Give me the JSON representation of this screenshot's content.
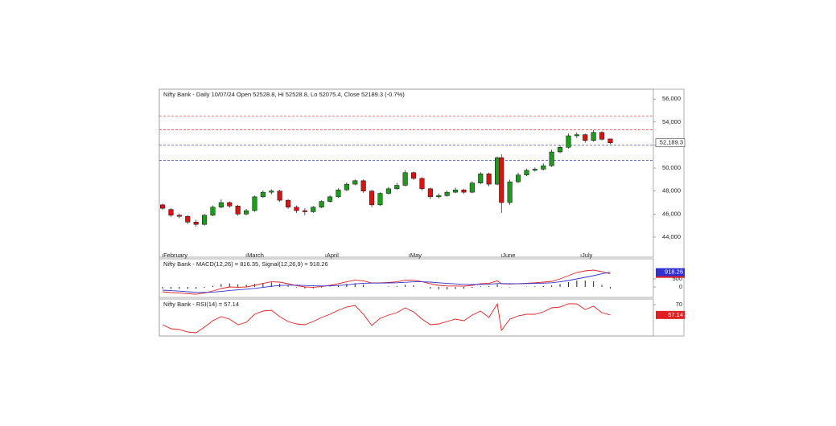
{
  "chart_data": [
    {
      "type": "candlestick",
      "title": "Nifty Bank - Daily 10/07/24 Open 52528.8, Hi 52528.8, Lo 52075.4, Close 52189.3 (-0.7%)",
      "x": [
        0,
        2,
        4,
        6,
        8,
        10,
        12,
        14,
        16,
        18,
        20,
        22,
        24,
        26,
        28,
        30,
        32,
        34,
        36,
        38,
        40,
        42,
        44,
        46,
        48,
        50,
        52,
        54,
        56,
        58,
        60,
        62,
        64,
        66,
        68,
        70,
        72,
        74,
        76,
        78,
        80,
        81,
        83,
        85,
        87,
        89,
        91,
        93,
        95,
        97,
        99,
        101,
        103,
        105,
        107
      ],
      "open": [
        46800,
        46400,
        45900,
        45800,
        45300,
        45100,
        45900,
        46600,
        47000,
        46700,
        46000,
        46300,
        47500,
        47900,
        48000,
        47200,
        46600,
        46300,
        46200,
        46600,
        47100,
        47500,
        48100,
        48600,
        48900,
        48000,
        46800,
        47800,
        48200,
        48500,
        49600,
        49100,
        48200,
        47500,
        47600,
        47900,
        48100,
        47900,
        48700,
        49500,
        48600,
        50900,
        47000,
        48800,
        49400,
        49800,
        49900,
        50200,
        51400,
        51800,
        52800,
        52900,
        52400,
        53100,
        52528.8
      ],
      "high": [
        46900,
        46500,
        46050,
        45900,
        45500,
        46000,
        46750,
        47300,
        47100,
        46800,
        46450,
        47600,
        48050,
        48150,
        48100,
        47300,
        46750,
        46500,
        46700,
        47200,
        47650,
        48250,
        48750,
        49000,
        49000,
        48100,
        47900,
        48350,
        48700,
        49800,
        49700,
        49200,
        48300,
        47800,
        48050,
        48300,
        48200,
        48850,
        49650,
        49600,
        51000,
        51200,
        49000,
        49600,
        49950,
        50050,
        50400,
        51600,
        52000,
        53000,
        53100,
        53000,
        53300,
        53200,
        52528.8
      ],
      "low": [
        46350,
        45750,
        45650,
        45150,
        44900,
        45000,
        45800,
        46500,
        46550,
        45850,
        45900,
        46200,
        47400,
        47700,
        47050,
        46450,
        46100,
        45900,
        46100,
        46500,
        47000,
        47400,
        48000,
        48500,
        47850,
        46600,
        46700,
        47700,
        48100,
        48400,
        48950,
        48050,
        47300,
        47350,
        47500,
        47800,
        47750,
        47800,
        48600,
        48400,
        48500,
        46100,
        46800,
        48700,
        49300,
        49700,
        49800,
        50100,
        51300,
        51700,
        52600,
        52200,
        52300,
        52400,
        52075.4
      ],
      "close": [
        46500,
        45900,
        45800,
        45300,
        45100,
        45900,
        46600,
        47000,
        46700,
        46000,
        46300,
        47500,
        47900,
        48000,
        47200,
        46600,
        46300,
        46200,
        46600,
        47100,
        47500,
        48100,
        48600,
        48900,
        48000,
        46800,
        47800,
        48200,
        48500,
        49600,
        49100,
        48200,
        47500,
        47600,
        47900,
        48100,
        47900,
        48700,
        49500,
        48600,
        50900,
        47000,
        48800,
        49400,
        49800,
        49900,
        50200,
        51400,
        51800,
        52800,
        52900,
        52400,
        53100,
        52500,
        52189.3
      ],
      "last_label": "52,189.3",
      "up_color": "#1e9a1e",
      "down_color": "#dd1111",
      "xlim": [
        -0.4,
        117.3
      ],
      "xticks": [
        {
          "value": 0,
          "label": "February"
        },
        {
          "value": 20,
          "label": "March"
        },
        {
          "value": 39,
          "label": "April"
        },
        {
          "value": 59,
          "label": "May"
        },
        {
          "value": 81,
          "label": "June"
        },
        {
          "value": 100,
          "label": "July"
        }
      ],
      "ylim": [
        42250,
        56850
      ],
      "yticks": [
        {
          "value": 44000,
          "label": "44,000"
        },
        {
          "value": 46000,
          "label": "46,000"
        },
        {
          "value": 48000,
          "label": "48,000"
        },
        {
          "value": 50000,
          "label": "50,000"
        },
        {
          "value": 52000,
          "label": "52,000"
        },
        {
          "value": 54000,
          "label": "54,000"
        },
        {
          "value": 56000,
          "label": "56,000"
        }
      ],
      "hlines": [
        {
          "value": 54530,
          "color": "#e03030"
        },
        {
          "value": 53330,
          "color": "#e03030"
        },
        {
          "value": 52000,
          "color": "#3040b0"
        },
        {
          "value": 50670,
          "color": "#3040b0"
        }
      ]
    },
    {
      "type": "line",
      "title": "Nifty Bank - MACD(12,26) = 816.35, Signal(12,26,9) = 918.26",
      "series": [
        {
          "name": "MACD",
          "color": "#e02020",
          "values": [
            -300,
            -350,
            -380,
            -420,
            -450,
            -380,
            -250,
            -100,
            0,
            -20,
            0,
            100,
            220,
            320,
            300,
            200,
            80,
            0,
            -20,
            20,
            100,
            200,
            320,
            420,
            380,
            250,
            250,
            280,
            320,
            420,
            420,
            330,
            200,
            100,
            60,
            60,
            50,
            100,
            200,
            220,
            380,
            200,
            180,
            200,
            230,
            260,
            300,
            350,
            500,
            700,
            900,
            1000,
            1050,
            950,
            816.35
          ]
        },
        {
          "name": "Signal",
          "color": "#3030d0",
          "values": [
            -200,
            -230,
            -260,
            -300,
            -330,
            -340,
            -320,
            -280,
            -220,
            -180,
            -140,
            -90,
            -30,
            40,
            90,
            110,
            110,
            90,
            70,
            60,
            70,
            90,
            130,
            190,
            230,
            240,
            240,
            250,
            260,
            290,
            320,
            320,
            300,
            260,
            220,
            190,
            160,
            150,
            160,
            170,
            210,
            210,
            205,
            205,
            210,
            220,
            235,
            260,
            320,
            400,
            500,
            600,
            700,
            820,
            918.26
          ]
        }
      ],
      "histogram": [
        -100,
        -120,
        -120,
        -120,
        -120,
        -40,
        70,
        180,
        220,
        160,
        140,
        190,
        250,
        280,
        210,
        90,
        -30,
        -90,
        -90,
        -40,
        30,
        110,
        190,
        230,
        150,
        10,
        10,
        30,
        60,
        130,
        100,
        10,
        -100,
        -160,
        -160,
        -130,
        -110,
        -50,
        40,
        50,
        170,
        -10,
        -25,
        -5,
        20,
        40,
        65,
        90,
        180,
        300,
        400,
        400,
        350,
        130,
        -101.91
      ],
      "histogram_color": "#222222",
      "end_labels": true,
      "ylim": [
        -650,
        1750
      ],
      "yticks": [
        0,
        500
      ]
    },
    {
      "type": "line",
      "title": "Nifty Bank - RSI(14) = 57.14",
      "series": [
        {
          "name": "RSI",
          "color": "#e02020",
          "values": [
            45,
            40,
            39,
            36,
            35,
            42,
            50,
            55,
            52,
            45,
            48,
            58,
            62,
            63,
            55,
            49,
            46,
            45,
            49,
            54,
            58,
            63,
            67,
            69,
            58,
            44,
            53,
            57,
            60,
            66,
            61,
            52,
            45,
            46,
            49,
            52,
            50,
            57,
            62,
            54,
            71,
            38,
            52,
            56,
            58,
            58,
            61,
            66,
            67,
            71,
            71,
            64,
            68,
            60,
            57.14
          ]
        }
      ],
      "end_labels": true,
      "ylim": [
        31,
        77
      ],
      "yticks": [
        70
      ]
    }
  ]
}
